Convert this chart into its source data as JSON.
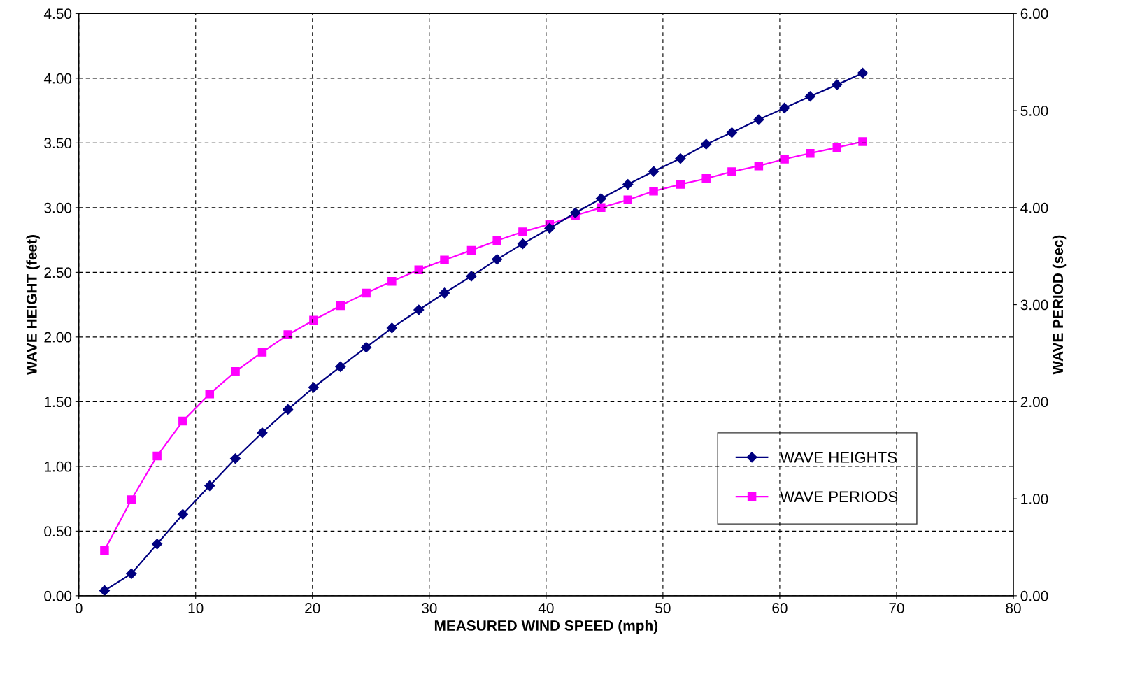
{
  "chart_data": {
    "type": "line",
    "xlabel": "MEASURED WIND SPEED (mph)",
    "ylabel": "WAVE HEIGHT (feet)",
    "y2label": "WAVE PERIOD (sec)",
    "x": [
      2.2,
      4.5,
      6.7,
      8.9,
      11.2,
      13.4,
      15.7,
      17.9,
      20.1,
      22.4,
      24.6,
      26.8,
      29.1,
      31.3,
      33.6,
      35.8,
      38.0,
      40.3,
      42.5,
      44.7,
      47.0,
      49.2,
      51.5,
      53.7,
      55.9,
      58.2,
      60.4,
      62.6,
      64.9,
      67.1
    ],
    "series": [
      {
        "name": "WAVE HEIGHTS",
        "color": "#000080",
        "marker": "diamond",
        "values": [
          0.04,
          0.17,
          0.4,
          0.63,
          0.85,
          1.06,
          1.26,
          1.44,
          1.61,
          1.77,
          1.92,
          2.07,
          2.21,
          2.34,
          2.47,
          2.6,
          2.72,
          2.84,
          2.96,
          3.07,
          3.18,
          3.28,
          3.38,
          3.49,
          3.58,
          3.68,
          3.77,
          3.86,
          3.95,
          4.04
        ]
      },
      {
        "name": "WAVE PERIODS",
        "color": "#ff00ff",
        "marker": "square",
        "axis": "y2",
        "values": [
          0.47,
          0.99,
          1.44,
          1.8,
          2.08,
          2.31,
          2.51,
          2.69,
          2.84,
          2.99,
          3.12,
          3.24,
          3.36,
          3.46,
          3.56,
          3.66,
          3.75,
          3.83,
          3.92,
          4.0,
          4.08,
          4.17,
          4.24,
          4.3,
          4.37,
          4.43,
          4.5,
          4.56,
          4.62,
          4.68
        ]
      }
    ],
    "xlim": [
      0,
      80
    ],
    "xticks": [
      0,
      10,
      20,
      30,
      40,
      50,
      60,
      70,
      80
    ],
    "ylim": [
      0,
      4.5
    ],
    "yticks": [
      {
        "value": 0,
        "label": "0.00"
      },
      {
        "value": 0.5,
        "label": "0.50"
      },
      {
        "value": 1,
        "label": "1.00"
      },
      {
        "value": 1.5,
        "label": "1.50"
      },
      {
        "value": 2,
        "label": "2.00"
      },
      {
        "value": 2.5,
        "label": "2.50"
      },
      {
        "value": 3,
        "label": "3.00"
      },
      {
        "value": 3.5,
        "label": "3.50"
      },
      {
        "value": 4,
        "label": "4.00"
      },
      {
        "value": 4.5,
        "label": "4.50"
      }
    ],
    "y2lim": [
      0,
      6
    ],
    "y2ticks": [
      {
        "value": 0,
        "label": "0.00"
      },
      {
        "value": 1,
        "label": "1.00"
      },
      {
        "value": 2,
        "label": "2.00"
      },
      {
        "value": 3,
        "label": "3.00"
      },
      {
        "value": 4,
        "label": "4.00"
      },
      {
        "value": 5,
        "label": "5.00"
      },
      {
        "value": 6,
        "label": "6.00"
      }
    ],
    "grid": true,
    "legend": "bottom right",
    "line_style": "solid"
  }
}
